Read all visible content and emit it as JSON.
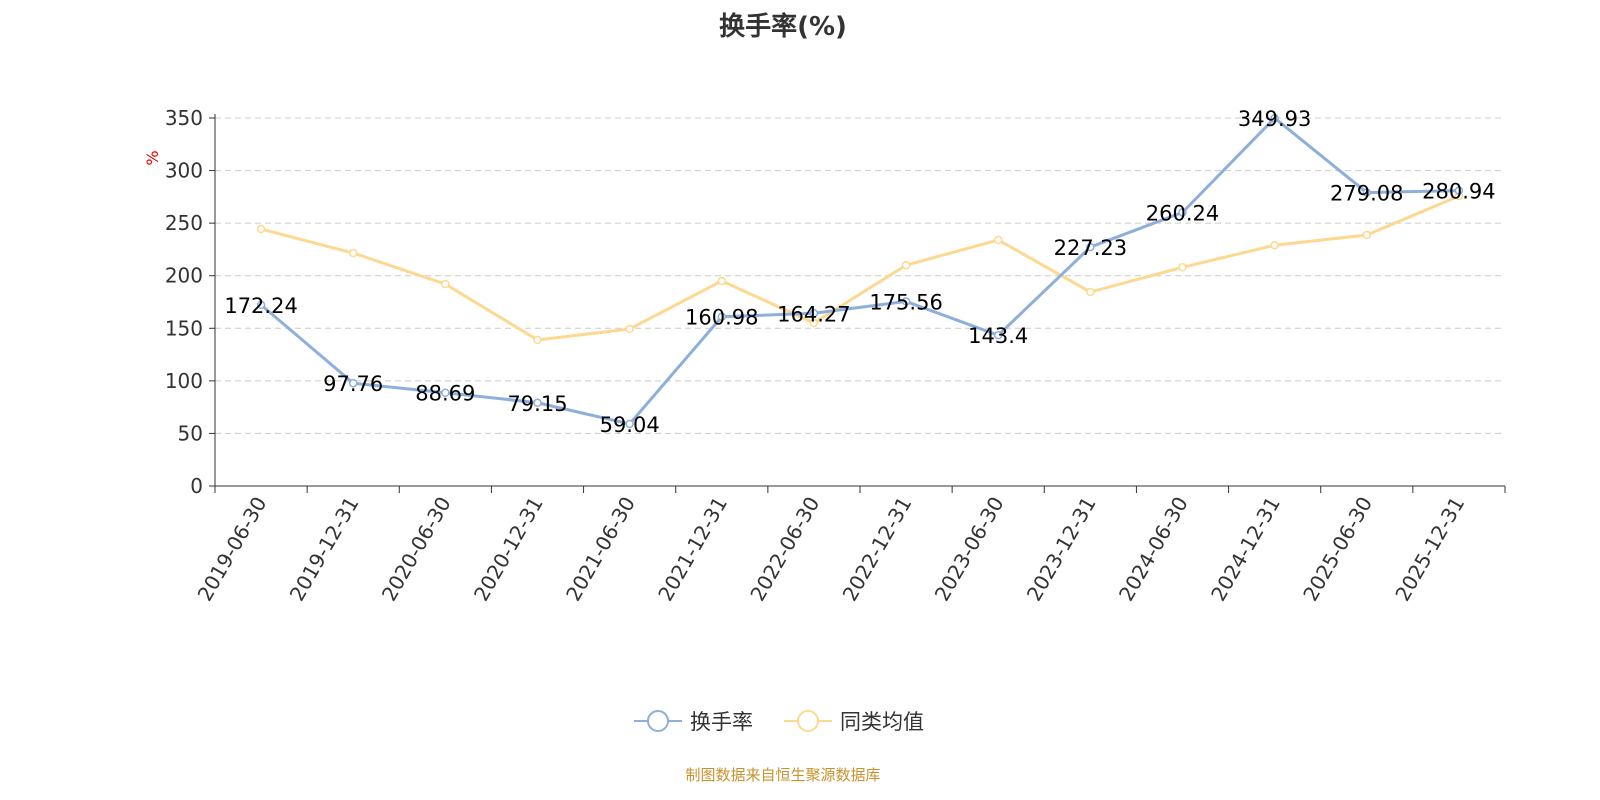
{
  "chart_data": {
    "type": "line",
    "title": "换手率(%)",
    "ylabel": "%",
    "xlabel": "",
    "ylim": [
      0,
      350
    ],
    "yticks": [
      0,
      50,
      100,
      150,
      200,
      250,
      300,
      350
    ],
    "grid": true,
    "legend_position": "bottom",
    "categories": [
      "2019-06-30",
      "2019-12-31",
      "2020-06-30",
      "2020-12-31",
      "2021-06-30",
      "2021-12-31",
      "2022-06-30",
      "2022-12-31",
      "2023-06-30",
      "2023-12-31",
      "2024-06-30",
      "2024-12-31",
      "2025-06-30",
      "2025-12-31"
    ],
    "series": [
      {
        "name": "换手率",
        "color": "#8eaedc",
        "show_labels": true,
        "values": [
          172.24,
          97.76,
          88.69,
          79.15,
          59.04,
          160.98,
          164.27,
          175.56,
          143.4,
          227.23,
          260.24,
          349.93,
          279.08,
          280.94
        ]
      },
      {
        "name": "同类均值",
        "color": "#fdd891",
        "show_labels": false,
        "values": [
          244.4,
          221.6,
          192,
          138.9,
          149.3,
          195,
          155,
          210,
          234,
          184.5,
          208,
          229,
          238.7,
          275.8
        ]
      }
    ]
  },
  "source": "制图数据来自恒生聚源数据库"
}
